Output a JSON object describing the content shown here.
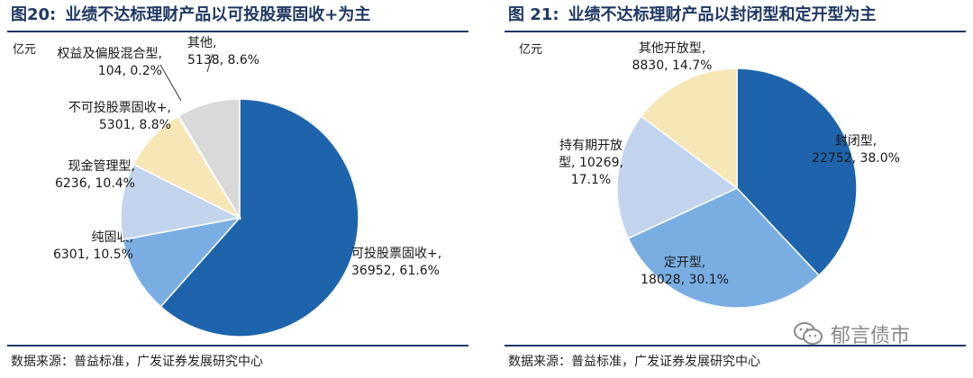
{
  "panels": [
    {
      "figure_number": "图20:",
      "title": "业绩不达标理财产品以可投股票固收+为主",
      "unit": "亿元",
      "source": "数据来源：普益标准，广发证券发展研究中心"
    },
    {
      "figure_number": "图 21:",
      "title": "业绩不达标理财产品以封闭型和定开型为主",
      "unit": "亿元",
      "source": "数据来源：普益标准，广发证券发展研究中心"
    }
  ],
  "chart_data": [
    {
      "type": "pie",
      "title": "业绩不达标理财产品以可投股票固收+为主",
      "unit": "亿元",
      "slices": [
        {
          "label": "可投股票固收+,",
          "value": 36952,
          "percent": "61.6%",
          "color": "#1e64ad"
        },
        {
          "label": "纯固收,",
          "value": 6301,
          "percent": "10.5%",
          "color": "#7aaee2"
        },
        {
          "label": "现金管理型,",
          "value": 6236,
          "percent": "10.4%",
          "color": "#c3d4ee"
        },
        {
          "label": "不可投股票固收+,",
          "value": 5301,
          "percent": "8.8%",
          "color": "#f7e7b7"
        },
        {
          "label": "权益及偏股混合型,",
          "value": 104,
          "percent": "0.2%",
          "color": "#7f7f7f"
        },
        {
          "label": "其他,",
          "value": 5138,
          "percent": "8.6%",
          "color": "#d9d9d9"
        }
      ]
    },
    {
      "type": "pie",
      "title": "业绩不达标理财产品以封闭型和定开型为主",
      "unit": "亿元",
      "slices": [
        {
          "label": "封闭型,",
          "value": 22752,
          "percent": "38.0%",
          "color": "#1e64ad"
        },
        {
          "label": "定开型,",
          "value": 18028,
          "percent": "30.1%",
          "color": "#7aaee2"
        },
        {
          "label": "持有期开放型,",
          "value": 10269,
          "percent": "17.1%",
          "color": "#c3d4ee"
        },
        {
          "label": "其他开放型,",
          "value": 8830,
          "percent": "14.7%",
          "color": "#f7e7b7"
        }
      ]
    }
  ],
  "watermark": {
    "text": "郁言债市",
    "icon": "wechat-icon"
  }
}
